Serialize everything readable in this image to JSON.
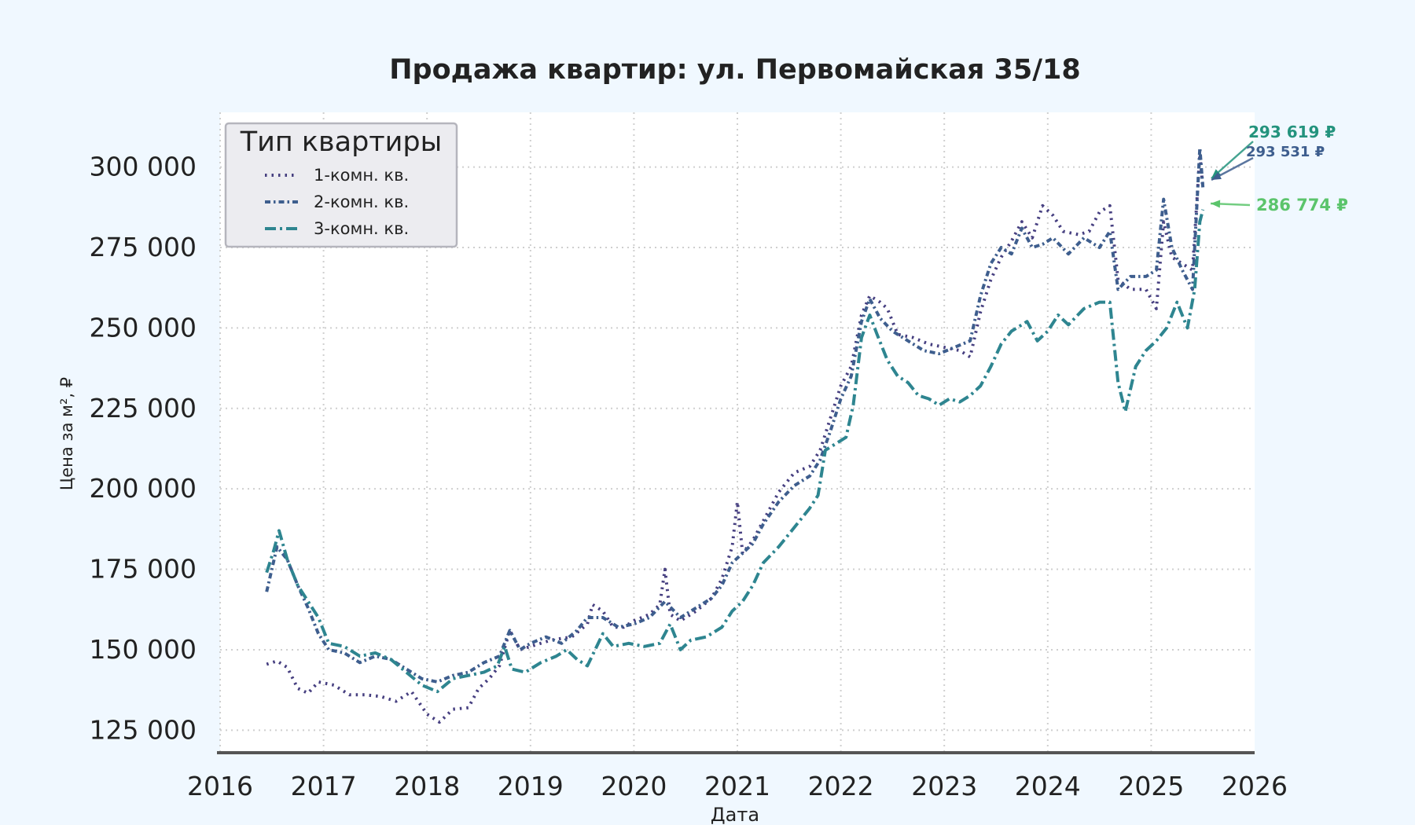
{
  "chart_data": {
    "type": "line",
    "title": "Продажа квартир: ул. Первомайская 35/18",
    "xlabel": "Дата",
    "ylabel": "Цена за м², ₽",
    "xlim": [
      2016,
      2026
    ],
    "ylim": [
      118000,
      317000
    ],
    "x_ticks": [
      "2016",
      "2017",
      "2018",
      "2019",
      "2020",
      "2021",
      "2022",
      "2023",
      "2024",
      "2025",
      "2026"
    ],
    "y_ticks": [
      {
        "value": 125000,
        "label": "125 000"
      },
      {
        "value": 150000,
        "label": "150 000"
      },
      {
        "value": 175000,
        "label": "175 000"
      },
      {
        "value": 200000,
        "label": "200 000"
      },
      {
        "value": 225000,
        "label": "225 000"
      },
      {
        "value": 250000,
        "label": "250 000"
      },
      {
        "value": 275000,
        "label": "275 000"
      },
      {
        "value": 300000,
        "label": "300 000"
      }
    ],
    "grid": true,
    "legend": {
      "title": "Тип квартиры",
      "placement": "top-left"
    },
    "series": [
      {
        "name": "1-комн. кв.",
        "color": "#463f80",
        "dash": "dotted",
        "points": [
          [
            2016.45,
            145500
          ],
          [
            2016.55,
            146500
          ],
          [
            2016.65,
            144500
          ],
          [
            2016.75,
            138000
          ],
          [
            2016.85,
            136500
          ],
          [
            2016.95,
            140000
          ],
          [
            2017.1,
            139000
          ],
          [
            2017.25,
            136000
          ],
          [
            2017.4,
            136000
          ],
          [
            2017.55,
            135500
          ],
          [
            2017.7,
            134000
          ],
          [
            2017.85,
            137000
          ],
          [
            2018.0,
            130000
          ],
          [
            2018.12,
            127500
          ],
          [
            2018.25,
            131500
          ],
          [
            2018.4,
            132000
          ],
          [
            2018.5,
            138000
          ],
          [
            2018.6,
            141000
          ],
          [
            2018.7,
            145000
          ],
          [
            2018.8,
            156000
          ],
          [
            2018.9,
            150000
          ],
          [
            2019.0,
            151000
          ],
          [
            2019.2,
            153000
          ],
          [
            2019.4,
            154000
          ],
          [
            2019.55,
            158000
          ],
          [
            2019.6,
            164000
          ],
          [
            2019.7,
            162000
          ],
          [
            2019.8,
            157000
          ],
          [
            2019.9,
            157000
          ],
          [
            2020.0,
            159000
          ],
          [
            2020.15,
            161000
          ],
          [
            2020.25,
            164000
          ],
          [
            2020.3,
            175000
          ],
          [
            2020.35,
            161000
          ],
          [
            2020.45,
            159000
          ],
          [
            2020.6,
            162000
          ],
          [
            2020.75,
            166000
          ],
          [
            2020.85,
            172000
          ],
          [
            2020.95,
            182000
          ],
          [
            2021.0,
            196000
          ],
          [
            2021.05,
            180000
          ],
          [
            2021.15,
            184000
          ],
          [
            2021.25,
            190000
          ],
          [
            2021.4,
            199000
          ],
          [
            2021.55,
            205000
          ],
          [
            2021.7,
            207000
          ],
          [
            2021.8,
            212000
          ],
          [
            2021.9,
            222000
          ],
          [
            2022.0,
            232000
          ],
          [
            2022.1,
            238000
          ],
          [
            2022.2,
            254000
          ],
          [
            2022.28,
            260000
          ],
          [
            2022.38,
            258000
          ],
          [
            2022.45,
            256000
          ],
          [
            2022.55,
            248000
          ],
          [
            2022.7,
            247000
          ],
          [
            2022.85,
            245000
          ],
          [
            2023.0,
            244000
          ],
          [
            2023.15,
            243000
          ],
          [
            2023.25,
            241000
          ],
          [
            2023.35,
            255000
          ],
          [
            2023.45,
            265000
          ],
          [
            2023.55,
            272000
          ],
          [
            2023.65,
            277000
          ],
          [
            2023.75,
            283000
          ],
          [
            2023.85,
            278000
          ],
          [
            2023.95,
            288000
          ],
          [
            2024.05,
            285000
          ],
          [
            2024.15,
            280000
          ],
          [
            2024.3,
            279000
          ],
          [
            2024.4,
            280000
          ],
          [
            2024.5,
            286000
          ],
          [
            2024.6,
            288000
          ],
          [
            2024.68,
            265000
          ],
          [
            2024.8,
            262000
          ],
          [
            2024.95,
            262000
          ],
          [
            2025.05,
            256000
          ],
          [
            2025.12,
            283000
          ],
          [
            2025.2,
            272000
          ],
          [
            2025.3,
            270000
          ],
          [
            2025.4,
            268000
          ],
          [
            2025.47,
            304000
          ],
          [
            2025.5,
            293531
          ]
        ]
      },
      {
        "name": "2-комн. кв.",
        "color": "#3e5e8e",
        "dash": "dashdot-short",
        "points": [
          [
            2016.45,
            168000
          ],
          [
            2016.55,
            182000
          ],
          [
            2016.65,
            178000
          ],
          [
            2016.75,
            170000
          ],
          [
            2016.85,
            163000
          ],
          [
            2016.95,
            155000
          ],
          [
            2017.05,
            150000
          ],
          [
            2017.2,
            149000
          ],
          [
            2017.35,
            146000
          ],
          [
            2017.5,
            148000
          ],
          [
            2017.65,
            147000
          ],
          [
            2017.8,
            144000
          ],
          [
            2017.95,
            141000
          ],
          [
            2018.1,
            140000
          ],
          [
            2018.25,
            142000
          ],
          [
            2018.4,
            143000
          ],
          [
            2018.55,
            146000
          ],
          [
            2018.7,
            148000
          ],
          [
            2018.8,
            156000
          ],
          [
            2018.9,
            150000
          ],
          [
            2019.0,
            152000
          ],
          [
            2019.15,
            154000
          ],
          [
            2019.3,
            152000
          ],
          [
            2019.45,
            156000
          ],
          [
            2019.55,
            160000
          ],
          [
            2019.7,
            160000
          ],
          [
            2019.85,
            157000
          ],
          [
            2020.0,
            158000
          ],
          [
            2020.15,
            160000
          ],
          [
            2020.3,
            165000
          ],
          [
            2020.45,
            160000
          ],
          [
            2020.6,
            163000
          ],
          [
            2020.75,
            166000
          ],
          [
            2020.85,
            170000
          ],
          [
            2020.95,
            177000
          ],
          [
            2021.05,
            180000
          ],
          [
            2021.15,
            183000
          ],
          [
            2021.25,
            189000
          ],
          [
            2021.4,
            196000
          ],
          [
            2021.55,
            201000
          ],
          [
            2021.7,
            204000
          ],
          [
            2021.8,
            209000
          ],
          [
            2021.9,
            218000
          ],
          [
            2022.0,
            228000
          ],
          [
            2022.1,
            235000
          ],
          [
            2022.2,
            252000
          ],
          [
            2022.28,
            259000
          ],
          [
            2022.38,
            253000
          ],
          [
            2022.5,
            249000
          ],
          [
            2022.65,
            246000
          ],
          [
            2022.8,
            243000
          ],
          [
            2022.95,
            242000
          ],
          [
            2023.1,
            244000
          ],
          [
            2023.25,
            246000
          ],
          [
            2023.35,
            260000
          ],
          [
            2023.45,
            270000
          ],
          [
            2023.55,
            275000
          ],
          [
            2023.65,
            273000
          ],
          [
            2023.75,
            281000
          ],
          [
            2023.85,
            275000
          ],
          [
            2023.95,
            276000
          ],
          [
            2024.05,
            278000
          ],
          [
            2024.2,
            273000
          ],
          [
            2024.35,
            278000
          ],
          [
            2024.5,
            275000
          ],
          [
            2024.6,
            280000
          ],
          [
            2024.68,
            262000
          ],
          [
            2024.8,
            266000
          ],
          [
            2024.95,
            266000
          ],
          [
            2025.05,
            268000
          ],
          [
            2025.12,
            290000
          ],
          [
            2025.2,
            275000
          ],
          [
            2025.3,
            268000
          ],
          [
            2025.4,
            262000
          ],
          [
            2025.47,
            306000
          ],
          [
            2025.5,
            293619
          ]
        ]
      },
      {
        "name": "3-комн. кв.",
        "color": "#2e8590",
        "dash": "dashdot",
        "points": [
          [
            2016.45,
            174000
          ],
          [
            2016.52,
            181000
          ],
          [
            2016.57,
            187000
          ],
          [
            2016.65,
            178000
          ],
          [
            2016.75,
            170000
          ],
          [
            2016.85,
            165000
          ],
          [
            2016.95,
            160000
          ],
          [
            2017.05,
            152000
          ],
          [
            2017.2,
            151000
          ],
          [
            2017.35,
            148000
          ],
          [
            2017.5,
            149000
          ],
          [
            2017.65,
            147000
          ],
          [
            2017.8,
            143000
          ],
          [
            2017.95,
            139000
          ],
          [
            2018.1,
            137000
          ],
          [
            2018.25,
            141000
          ],
          [
            2018.4,
            142000
          ],
          [
            2018.55,
            143000
          ],
          [
            2018.68,
            145000
          ],
          [
            2018.75,
            151000
          ],
          [
            2018.82,
            144000
          ],
          [
            2018.95,
            143000
          ],
          [
            2019.1,
            146000
          ],
          [
            2019.25,
            148000
          ],
          [
            2019.35,
            150000
          ],
          [
            2019.45,
            147000
          ],
          [
            2019.55,
            145000
          ],
          [
            2019.7,
            155000
          ],
          [
            2019.8,
            151000
          ],
          [
            2019.95,
            152000
          ],
          [
            2020.1,
            151000
          ],
          [
            2020.25,
            152000
          ],
          [
            2020.35,
            158000
          ],
          [
            2020.45,
            150000
          ],
          [
            2020.55,
            153000
          ],
          [
            2020.7,
            154000
          ],
          [
            2020.85,
            157000
          ],
          [
            2020.95,
            162000
          ],
          [
            2021.05,
            165000
          ],
          [
            2021.15,
            170000
          ],
          [
            2021.25,
            177000
          ],
          [
            2021.4,
            182000
          ],
          [
            2021.5,
            186000
          ],
          [
            2021.6,
            190000
          ],
          [
            2021.7,
            194000
          ],
          [
            2021.78,
            198000
          ],
          [
            2021.85,
            212000
          ],
          [
            2021.95,
            214000
          ],
          [
            2022.05,
            216000
          ],
          [
            2022.12,
            226000
          ],
          [
            2022.2,
            247000
          ],
          [
            2022.28,
            254000
          ],
          [
            2022.35,
            248000
          ],
          [
            2022.45,
            240000
          ],
          [
            2022.55,
            235000
          ],
          [
            2022.65,
            233000
          ],
          [
            2022.75,
            229000
          ],
          [
            2022.85,
            228000
          ],
          [
            2022.95,
            226000
          ],
          [
            2023.05,
            228000
          ],
          [
            2023.15,
            227000
          ],
          [
            2023.25,
            229000
          ],
          [
            2023.35,
            232000
          ],
          [
            2023.45,
            238000
          ],
          [
            2023.55,
            245000
          ],
          [
            2023.65,
            249000
          ],
          [
            2023.8,
            252000
          ],
          [
            2023.9,
            246000
          ],
          [
            2024.0,
            249000
          ],
          [
            2024.1,
            254000
          ],
          [
            2024.2,
            251000
          ],
          [
            2024.35,
            256000
          ],
          [
            2024.5,
            258000
          ],
          [
            2024.6,
            258000
          ],
          [
            2024.68,
            233000
          ],
          [
            2024.75,
            224000
          ],
          [
            2024.85,
            238000
          ],
          [
            2024.95,
            243000
          ],
          [
            2025.05,
            246000
          ],
          [
            2025.15,
            250000
          ],
          [
            2025.25,
            258000
          ],
          [
            2025.35,
            250000
          ],
          [
            2025.42,
            262000
          ],
          [
            2025.47,
            283000
          ],
          [
            2025.5,
            286774
          ]
        ]
      }
    ],
    "annotations": [
      {
        "text": "293 619 ₽",
        "series": "2-комн. кв.",
        "x": 2025.5,
        "y": 293619,
        "color": "#23937d"
      },
      {
        "text": "293 531 ₽",
        "series": "1-комн. кв.",
        "x": 2025.5,
        "y": 293531,
        "color": "#3e5e8e"
      },
      {
        "text": "286 774 ₽",
        "series": "3-комн. кв.",
        "x": 2025.5,
        "y": 286774,
        "color": "#5bc46b"
      }
    ]
  }
}
